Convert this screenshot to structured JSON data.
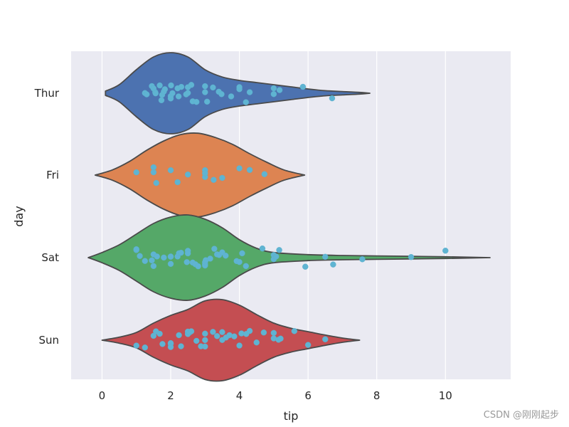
{
  "chart_data": {
    "type": "violin",
    "orientation": "horizontal",
    "xlabel": "tip",
    "ylabel": "day",
    "xlim": [
      -0.9,
      11.9
    ],
    "xticks": [
      0,
      2,
      4,
      6,
      8,
      10
    ],
    "xtick_labels": [
      "0",
      "2",
      "4",
      "6",
      "8",
      "10"
    ],
    "grid": true,
    "background": "#eaeaf2",
    "grid_color": "#ffffff",
    "outline_color": "#4a4a4a",
    "point_color": "#5fb4d2",
    "categories": [
      "Thur",
      "Fri",
      "Sat",
      "Sun"
    ],
    "series": [
      {
        "category": "Thur",
        "color": "#4c72b0",
        "violin": {
          "tips": [
            0.1,
            0.5,
            1.0,
            1.5,
            2.0,
            2.5,
            3.0,
            3.5,
            4.0,
            4.5,
            5.0,
            5.5,
            6.0,
            6.5,
            7.0,
            7.5,
            7.8
          ],
          "density": [
            0.05,
            0.2,
            0.55,
            0.85,
            0.95,
            0.85,
            0.55,
            0.38,
            0.3,
            0.25,
            0.2,
            0.15,
            0.1,
            0.06,
            0.04,
            0.02,
            0.0
          ]
        },
        "points": [
          1.25,
          1.3,
          1.45,
          1.5,
          1.55,
          1.56,
          1.68,
          1.73,
          1.75,
          1.8,
          1.83,
          2.0,
          2.0,
          2.01,
          2.05,
          2.2,
          2.23,
          2.31,
          2.45,
          2.5,
          2.5,
          2.6,
          2.64,
          2.75,
          3.0,
          3.0,
          3.06,
          3.23,
          3.4,
          3.48,
          3.76,
          4.0,
          4.0,
          4.19,
          4.3,
          5.0,
          5.0,
          5.17,
          5.85,
          6.7
        ]
      },
      {
        "category": "Fri",
        "color": "#dd8452",
        "violin": {
          "tips": [
            -0.2,
            0.3,
            0.8,
            1.3,
            1.8,
            2.3,
            2.8,
            3.3,
            3.8,
            4.3,
            4.8,
            5.3,
            5.9
          ],
          "density": [
            0.0,
            0.12,
            0.32,
            0.58,
            0.8,
            0.95,
            0.98,
            0.88,
            0.72,
            0.5,
            0.3,
            0.12,
            0.0
          ]
        },
        "points": [
          1.0,
          1.5,
          1.5,
          1.58,
          2.0,
          2.2,
          2.5,
          3.0,
          3.0,
          3.0,
          3.25,
          3.5,
          4.0,
          4.3,
          4.73
        ]
      },
      {
        "category": "Sat",
        "color": "#55a868",
        "violin": {
          "tips": [
            -0.4,
            0.0,
            0.5,
            1.0,
            1.5,
            2.0,
            2.5,
            3.0,
            3.5,
            4.0,
            4.5,
            5.0,
            6.0,
            7.0,
            8.0,
            9.0,
            10.0,
            11.3
          ],
          "density": [
            0.0,
            0.12,
            0.3,
            0.55,
            0.8,
            0.95,
            1.0,
            0.9,
            0.7,
            0.42,
            0.22,
            0.12,
            0.07,
            0.05,
            0.04,
            0.03,
            0.02,
            0.0
          ]
        },
        "points": [
          1.0,
          1.0,
          1.1,
          1.25,
          1.45,
          1.5,
          1.5,
          1.6,
          1.8,
          2.0,
          2.0,
          2.0,
          2.2,
          2.24,
          2.3,
          2.47,
          2.5,
          2.5,
          2.64,
          2.72,
          2.8,
          3.0,
          3.0,
          3.0,
          3.02,
          3.15,
          3.27,
          3.35,
          3.41,
          3.5,
          3.6,
          3.92,
          4.0,
          4.08,
          4.19,
          4.67,
          5.0,
          5.0,
          5.07,
          5.16,
          5.92,
          6.5,
          6.73,
          7.58,
          9.0,
          10.0
        ]
      },
      {
        "category": "Sun",
        "color": "#c44e52",
        "violin": {
          "tips": [
            0.0,
            0.5,
            1.0,
            1.5,
            2.0,
            2.5,
            3.0,
            3.5,
            4.0,
            4.5,
            5.0,
            5.5,
            6.0,
            6.5,
            7.0,
            7.5
          ],
          "density": [
            0.0,
            0.07,
            0.18,
            0.4,
            0.58,
            0.72,
            0.92,
            0.95,
            0.82,
            0.6,
            0.4,
            0.28,
            0.2,
            0.12,
            0.05,
            0.0
          ]
        },
        "points": [
          1.0,
          1.25,
          1.5,
          1.57,
          1.68,
          1.76,
          2.0,
          2.0,
          2.0,
          2.24,
          2.3,
          2.5,
          2.5,
          2.55,
          2.6,
          2.75,
          2.88,
          3.0,
          3.0,
          3.0,
          3.23,
          3.35,
          3.5,
          3.5,
          3.61,
          3.71,
          3.85,
          4.0,
          4.06,
          4.2,
          4.3,
          4.5,
          4.71,
          5.0,
          5.0,
          5.14,
          5.2,
          5.6,
          6.0,
          6.5
        ]
      }
    ]
  },
  "watermark": "CSDN @刚刚起步"
}
